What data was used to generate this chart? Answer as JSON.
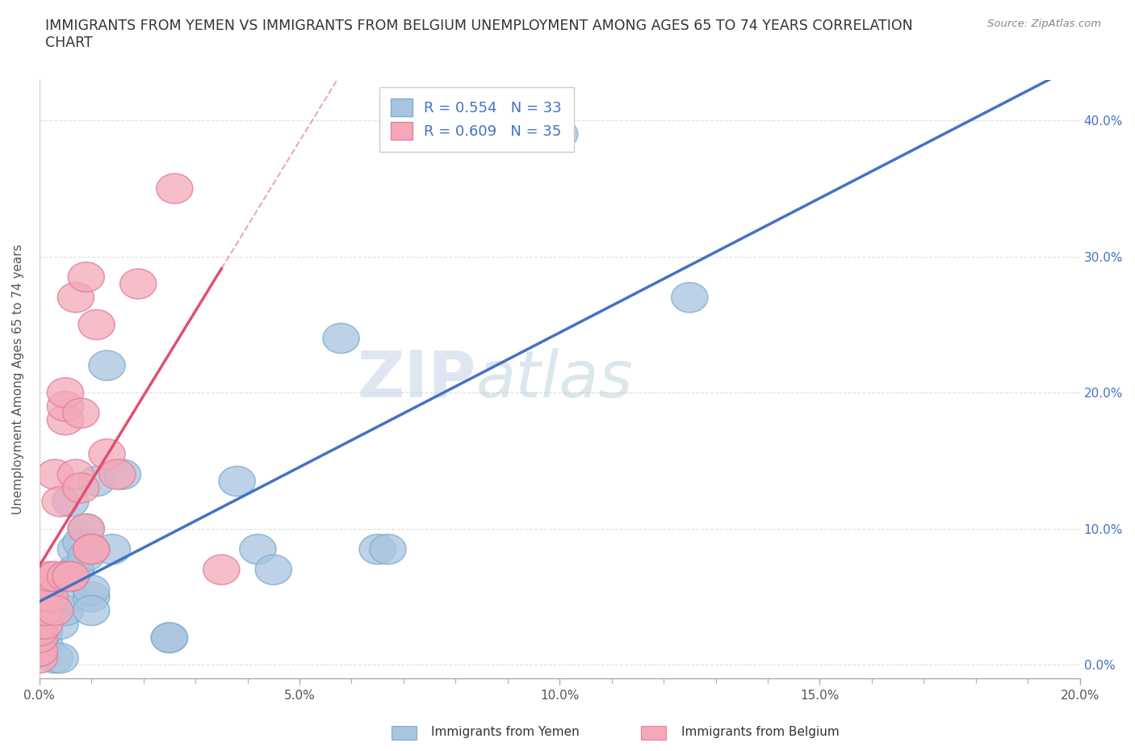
{
  "title": "IMMIGRANTS FROM YEMEN VS IMMIGRANTS FROM BELGIUM UNEMPLOYMENT AMONG AGES 65 TO 74 YEARS CORRELATION\nCHART",
  "source": "Source: ZipAtlas.com",
  "ylabel": "Unemployment Among Ages 65 to 74 years",
  "xlim": [
    0.0,
    0.2
  ],
  "ylim": [
    -0.01,
    0.43
  ],
  "x_ticks_major": [
    0.0,
    0.05,
    0.1,
    0.15,
    0.2
  ],
  "x_ticks_minor": [
    0.0,
    0.01,
    0.02,
    0.03,
    0.04,
    0.05,
    0.06,
    0.07,
    0.08,
    0.09,
    0.1,
    0.11,
    0.12,
    0.13,
    0.14,
    0.15,
    0.16,
    0.17,
    0.18,
    0.19,
    0.2
  ],
  "x_tick_labels": [
    "0.0%",
    "5.0%",
    "10.0%",
    "15.0%",
    "20.0%"
  ],
  "y_ticks": [
    0.0,
    0.1,
    0.2,
    0.3,
    0.4
  ],
  "y_tick_labels": [
    "0.0%",
    "10.0%",
    "20.0%",
    "30.0%",
    "40.0%"
  ],
  "yemen_color": "#a8c4e0",
  "yemen_edge_color": "#7aafd0",
  "belgium_color": "#f4a8b8",
  "belgium_edge_color": "#e080a0",
  "yemen_line_color": "#4472c4",
  "belgium_line_color": "#e05070",
  "legend_text_color": "#4472c4",
  "R_yemen": 0.554,
  "N_yemen": 33,
  "R_belgium": 0.609,
  "N_belgium": 35,
  "background_color": "#ffffff",
  "grid_color": "#e0e0e0",
  "watermark_zip": "ZIP",
  "watermark_atlas": "atlas",
  "yemen_x": [
    0.001,
    0.001,
    0.002,
    0.003,
    0.004,
    0.004,
    0.005,
    0.005,
    0.006,
    0.006,
    0.007,
    0.007,
    0.007,
    0.008,
    0.009,
    0.009,
    0.01,
    0.01,
    0.01,
    0.011,
    0.013,
    0.014,
    0.016,
    0.025,
    0.025,
    0.038,
    0.042,
    0.045,
    0.058,
    0.065,
    0.067,
    0.1,
    0.125
  ],
  "yemen_y": [
    0.015,
    0.025,
    0.06,
    0.005,
    0.005,
    0.03,
    0.04,
    0.065,
    0.05,
    0.12,
    0.07,
    0.07,
    0.085,
    0.09,
    0.08,
    0.1,
    0.05,
    0.055,
    0.04,
    0.135,
    0.22,
    0.085,
    0.14,
    0.02,
    0.02,
    0.135,
    0.085,
    0.07,
    0.24,
    0.085,
    0.085,
    0.39,
    0.27
  ],
  "belgium_x": [
    0.0,
    0.0,
    0.0,
    0.0,
    0.0,
    0.0,
    0.001,
    0.001,
    0.001,
    0.002,
    0.002,
    0.003,
    0.003,
    0.003,
    0.004,
    0.005,
    0.005,
    0.005,
    0.005,
    0.006,
    0.006,
    0.007,
    0.007,
    0.008,
    0.008,
    0.009,
    0.009,
    0.01,
    0.01,
    0.011,
    0.013,
    0.015,
    0.019,
    0.026,
    0.035
  ],
  "belgium_y": [
    0.005,
    0.01,
    0.02,
    0.025,
    0.03,
    0.06,
    0.03,
    0.04,
    0.05,
    0.05,
    0.065,
    0.14,
    0.04,
    0.065,
    0.12,
    0.065,
    0.18,
    0.19,
    0.2,
    0.065,
    0.065,
    0.14,
    0.27,
    0.185,
    0.13,
    0.1,
    0.285,
    0.085,
    0.085,
    0.25,
    0.155,
    0.14,
    0.28,
    0.35,
    0.07
  ]
}
